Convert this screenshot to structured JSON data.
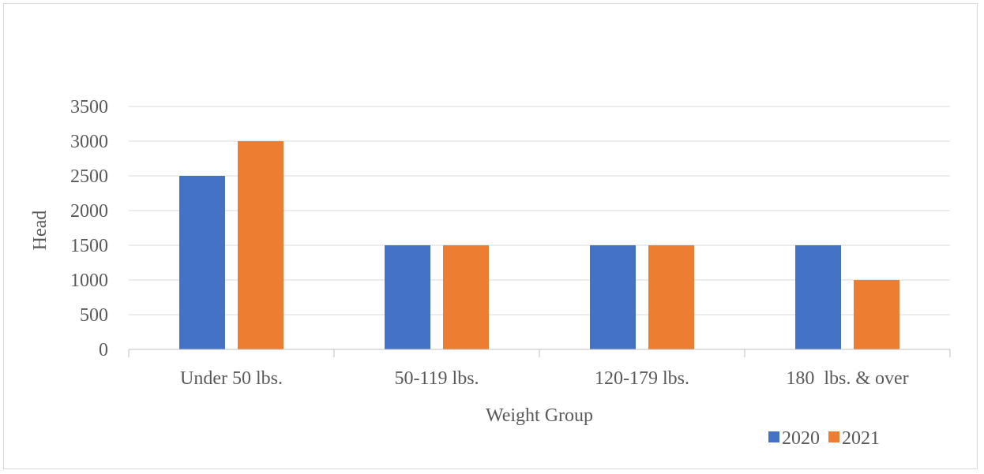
{
  "chart_data": {
    "type": "bar",
    "title": "",
    "xlabel": "Weight Group",
    "ylabel": "Head",
    "categories": [
      "Under 50 lbs.",
      "50-119 lbs.",
      "120-179 lbs.",
      "180  lbs. & over"
    ],
    "series": [
      {
        "name": "2020",
        "values": [
          2500,
          1500,
          1500,
          1500
        ],
        "color": "#4472C4"
      },
      {
        "name": "2021",
        "values": [
          3000,
          1500,
          1500,
          1000
        ],
        "color": "#ED7D31"
      }
    ],
    "ylim": [
      0,
      3500
    ],
    "y_ticks": [
      "0",
      "500",
      "1000",
      "1500",
      "2000",
      "2500",
      "3000",
      "3500"
    ],
    "grid": true,
    "legend_position": "bottom-right"
  }
}
